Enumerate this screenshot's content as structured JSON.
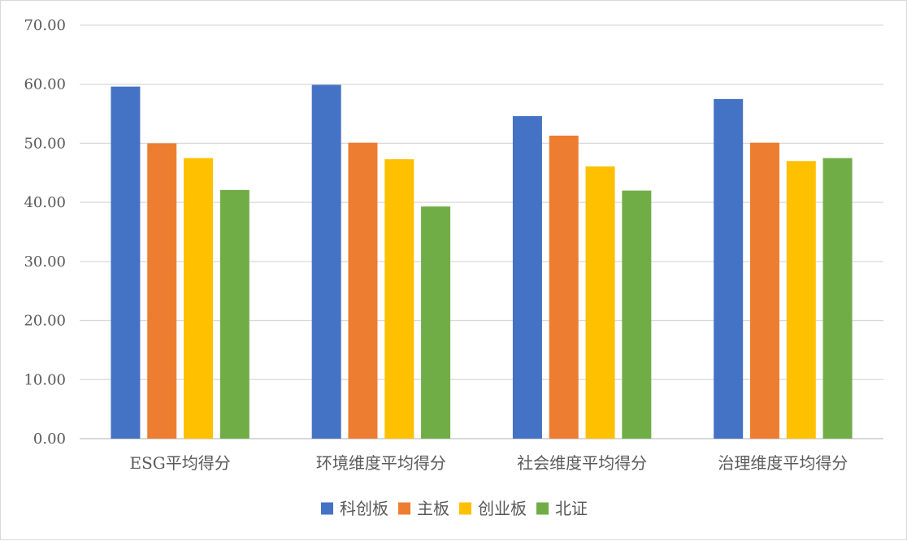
{
  "chart_data": {
    "type": "bar",
    "categories": [
      "ESG平均得分",
      "环境维度平均得分",
      "社会维度平均得分",
      "治理维度平均得分"
    ],
    "series": [
      {
        "name": "科创板",
        "color": "#4472C4",
        "values": [
          59.6,
          59.9,
          54.6,
          57.5
        ]
      },
      {
        "name": "主板",
        "color": "#ED7D31",
        "values": [
          50.0,
          50.1,
          51.3,
          50.1
        ]
      },
      {
        "name": "创业板",
        "color": "#FFC000",
        "values": [
          47.5,
          47.3,
          46.1,
          47.0
        ]
      },
      {
        "name": "北证",
        "color": "#70AD47",
        "values": [
          42.1,
          39.3,
          42.0,
          47.5
        ]
      }
    ],
    "ylim": [
      0,
      70
    ],
    "y_ticks": [
      "0.00",
      "10.00",
      "20.00",
      "30.00",
      "40.00",
      "50.00",
      "60.00",
      "70.00"
    ],
    "grid": true,
    "legend_position": "bottom"
  }
}
